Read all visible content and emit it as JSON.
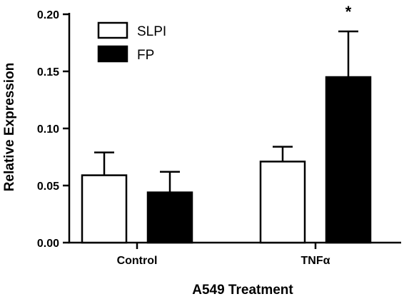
{
  "chart_data": {
    "type": "bar",
    "xlabel": "A549 Treatment",
    "ylabel": "Relative Expression",
    "categories": [
      "Control",
      "TNFα"
    ],
    "ylim": [
      0,
      0.2
    ],
    "yticks": [
      "0.00",
      "0.05",
      "0.10",
      "0.15",
      "0.20"
    ],
    "ytick_values": [
      0,
      0.05,
      0.1,
      0.15,
      0.2
    ],
    "legend_position": "top-left",
    "grid": false,
    "series": [
      {
        "name": "SLPI",
        "fill": "#ffffff",
        "values": [
          0.059,
          0.071
        ],
        "errors": [
          0.02,
          0.013
        ]
      },
      {
        "name": "FP",
        "fill": "#000000",
        "values": [
          0.044,
          0.145
        ],
        "errors": [
          0.018,
          0.04
        ]
      }
    ],
    "annotations": [
      {
        "text": "*",
        "category_index": 1,
        "series_index": 1
      }
    ]
  }
}
